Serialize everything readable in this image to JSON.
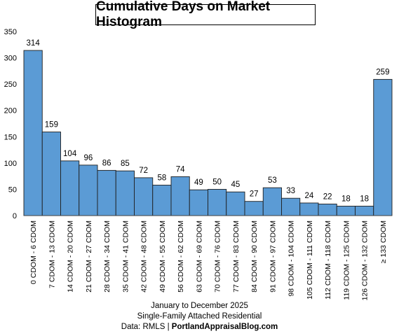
{
  "chart_data": {
    "type": "bar",
    "title": "Cumulative Days on Market Histogram",
    "categories": [
      "0 CDOM - 6 CDOM",
      "7 CDOM - 13 CDOM",
      "14 CDOM - 20 CDOM",
      "21 CDOM - 27 CDOM",
      "28 CDOM - 34 CDOM",
      "35 CDOM - 41 CDOM",
      "42 CDOM - 48 CDOM",
      "49 CDOM - 55 CDOM",
      "56 CDOM - 62 CDOM",
      "63 CDOM - 69 CDOM",
      "70 CDOM - 76 CDOM",
      "77 CDOM - 83 CDOM",
      "84 CDOM - 90 CDOM",
      "91 CDOM - 97 CDOM",
      "98 CDOM - 104 CDOM",
      "105 CDOM - 111 CDOM",
      "112 CDOM - 118 CDOM",
      "119 CDOM - 125 CDOM",
      "126 CDOM - 132 CDOM",
      "≥ 133 CDOM"
    ],
    "values": [
      314,
      159,
      104,
      96,
      86,
      85,
      72,
      58,
      74,
      49,
      50,
      45,
      27,
      53,
      33,
      24,
      22,
      18,
      18,
      259
    ],
    "ylim": [
      0,
      350
    ],
    "yticks": [
      0,
      50,
      100,
      150,
      200,
      250,
      300,
      350
    ],
    "grid": false,
    "bar_color": "#5b9bd5",
    "bar_edge_color": "#1f1f1f"
  },
  "footer": {
    "line1": "January to December 2025",
    "line2": "Single-Family Attached Residential",
    "line3_prefix": "Data: RMLS | ",
    "line3_bold": "PortlandAppraisalBlog.com"
  }
}
